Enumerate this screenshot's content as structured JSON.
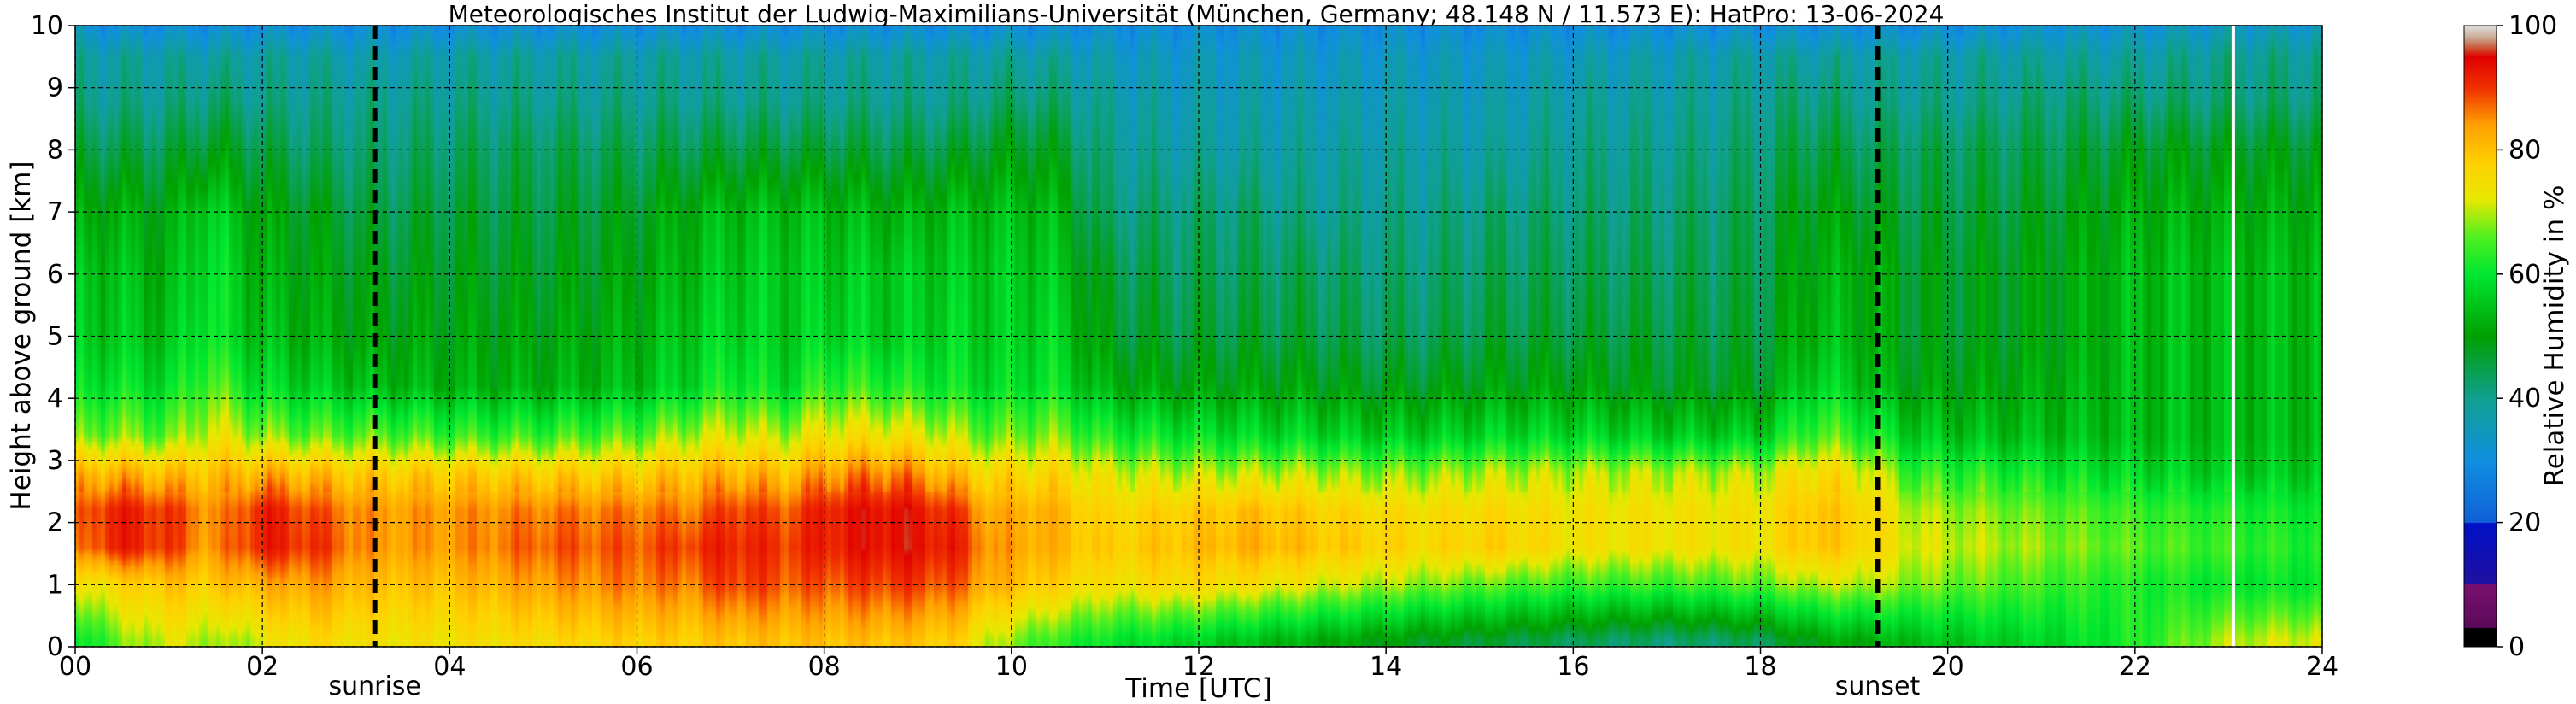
{
  "chart_data": {
    "type": "heatmap",
    "title": "Meteorologisches Institut der Ludwig-Maximilians-Universität (München, Germany; 48.148 N / 11.573 E):    HatPro: 13-06-2024",
    "xlabel": "Time [UTC]",
    "ylabel": "Height above ground [km]",
    "xlim": [
      0,
      24
    ],
    "ylim": [
      0,
      10
    ],
    "x_ticks": [
      "00",
      "02",
      "04",
      "06",
      "08",
      "10",
      "12",
      "14",
      "16",
      "18",
      "20",
      "22",
      "24"
    ],
    "y_ticks": [
      "0",
      "1",
      "2",
      "3",
      "4",
      "5",
      "6",
      "7",
      "8",
      "9",
      "10"
    ],
    "grid": true,
    "colorbar": {
      "label": "Relative Humidity in %",
      "range": [
        0,
        100
      ],
      "ticks": [
        "0",
        "20",
        "40",
        "60",
        "80",
        "100"
      ]
    },
    "annotations": [
      {
        "text": "sunrise",
        "x": 3.2
      },
      {
        "text": "sunset",
        "x": 19.25
      }
    ],
    "missing_data_line_x": 23.05,
    "rh_profiles": [
      {
        "t": 0.0,
        "rh": [
          58,
          72,
          84,
          86,
          80,
          66,
          58,
          55,
          54,
          50,
          45,
          40,
          38,
          32
        ]
      },
      {
        "t": 0.4,
        "rh": [
          66,
          76,
          92,
          92,
          82,
          68,
          60,
          56,
          55,
          52,
          45,
          40,
          38,
          30
        ]
      },
      {
        "t": 1.0,
        "rh": [
          72,
          80,
          90,
          90,
          80,
          66,
          58,
          54,
          52,
          50,
          45,
          40,
          38,
          30
        ]
      },
      {
        "t": 1.4,
        "rh": [
          70,
          78,
          84,
          85,
          80,
          72,
          66,
          62,
          60,
          58,
          48,
          42,
          38,
          30
        ]
      },
      {
        "t": 1.6,
        "rh": [
          68,
          80,
          86,
          85,
          80,
          72,
          64,
          58,
          58,
          55,
          48,
          42,
          38,
          30
        ]
      },
      {
        "t": 2.0,
        "rh": [
          72,
          82,
          92,
          92,
          82,
          68,
          58,
          54,
          52,
          50,
          45,
          40,
          38,
          30
        ]
      },
      {
        "t": 2.6,
        "rh": [
          76,
          84,
          90,
          88,
          80,
          66,
          56,
          52,
          50,
          48,
          43,
          40,
          38,
          30
        ]
      },
      {
        "t": 3.2,
        "rh": [
          74,
          80,
          84,
          84,
          78,
          66,
          54,
          50,
          48,
          45,
          42,
          40,
          36,
          30
        ]
      },
      {
        "t": 4.0,
        "rh": [
          74,
          80,
          84,
          84,
          78,
          64,
          52,
          50,
          48,
          46,
          43,
          40,
          38,
          30
        ]
      },
      {
        "t": 5.0,
        "rh": [
          76,
          84,
          88,
          86,
          78,
          64,
          52,
          50,
          48,
          46,
          44,
          40,
          38,
          30
        ]
      },
      {
        "t": 6.0,
        "rh": [
          78,
          86,
          88,
          86,
          78,
          66,
          54,
          52,
          50,
          48,
          44,
          40,
          38,
          30
        ]
      },
      {
        "t": 6.6,
        "rh": [
          78,
          86,
          90,
          86,
          80,
          70,
          58,
          56,
          54,
          52,
          45,
          40,
          38,
          30
        ]
      },
      {
        "t": 7.0,
        "rh": [
          80,
          90,
          92,
          90,
          82,
          72,
          62,
          58,
          56,
          54,
          46,
          40,
          38,
          30
        ]
      },
      {
        "t": 7.6,
        "rh": [
          80,
          88,
          90,
          88,
          80,
          70,
          58,
          56,
          56,
          54,
          46,
          40,
          38,
          30
        ]
      },
      {
        "t": 8.0,
        "rh": [
          80,
          88,
          92,
          92,
          84,
          74,
          64,
          58,
          56,
          54,
          46,
          40,
          38,
          30
        ]
      },
      {
        "t": 8.8,
        "rh": [
          80,
          90,
          94,
          94,
          86,
          74,
          62,
          56,
          56,
          52,
          45,
          40,
          38,
          30
        ]
      },
      {
        "t": 9.4,
        "rh": [
          78,
          88,
          92,
          90,
          80,
          70,
          60,
          58,
          56,
          54,
          46,
          40,
          38,
          30
        ]
      },
      {
        "t": 9.8,
        "rh": [
          70,
          82,
          84,
          82,
          76,
          66,
          58,
          56,
          56,
          54,
          48,
          42,
          38,
          30
        ]
      },
      {
        "t": 10.4,
        "rh": [
          64,
          78,
          82,
          82,
          76,
          68,
          60,
          58,
          56,
          54,
          48,
          42,
          38,
          30
        ]
      },
      {
        "t": 11.0,
        "rh": [
          60,
          74,
          78,
          76,
          72,
          62,
          52,
          48,
          46,
          42,
          40,
          38,
          35,
          30
        ]
      },
      {
        "t": 11.8,
        "rh": [
          58,
          76,
          80,
          78,
          70,
          60,
          50,
          46,
          44,
          42,
          38,
          36,
          34,
          30
        ]
      },
      {
        "t": 12.6,
        "rh": [
          54,
          74,
          82,
          80,
          70,
          58,
          50,
          46,
          44,
          42,
          38,
          36,
          34,
          30
        ]
      },
      {
        "t": 13.2,
        "rh": [
          52,
          72,
          80,
          78,
          70,
          58,
          50,
          46,
          44,
          40,
          38,
          36,
          34,
          30
        ]
      },
      {
        "t": 13.8,
        "rh": [
          50,
          70,
          78,
          76,
          68,
          56,
          48,
          44,
          42,
          40,
          38,
          36,
          34,
          30
        ]
      },
      {
        "t": 14.4,
        "rh": [
          48,
          68,
          76,
          75,
          68,
          56,
          48,
          44,
          42,
          40,
          38,
          36,
          34,
          30
        ]
      },
      {
        "t": 15.2,
        "rh": [
          46,
          66,
          78,
          76,
          70,
          58,
          50,
          46,
          44,
          42,
          38,
          36,
          34,
          30
        ]
      },
      {
        "t": 16.0,
        "rh": [
          44,
          64,
          74,
          74,
          70,
          58,
          50,
          46,
          44,
          42,
          40,
          38,
          35,
          30
        ]
      },
      {
        "t": 17.0,
        "rh": [
          42,
          64,
          74,
          74,
          70,
          56,
          48,
          46,
          44,
          42,
          40,
          38,
          36,
          30
        ]
      },
      {
        "t": 18.0,
        "rh": [
          44,
          66,
          74,
          74,
          70,
          56,
          48,
          46,
          45,
          44,
          42,
          40,
          38,
          30
        ]
      },
      {
        "t": 18.6,
        "rh": [
          50,
          70,
          80,
          80,
          76,
          66,
          58,
          54,
          52,
          50,
          46,
          42,
          38,
          30
        ]
      },
      {
        "t": 19.2,
        "rh": [
          52,
          70,
          76,
          76,
          72,
          62,
          54,
          52,
          52,
          48,
          44,
          40,
          38,
          30
        ]
      },
      {
        "t": 19.6,
        "rh": [
          54,
          68,
          72,
          70,
          64,
          56,
          50,
          48,
          48,
          46,
          44,
          40,
          38,
          30
        ]
      },
      {
        "t": 20.4,
        "rh": [
          56,
          66,
          70,
          68,
          62,
          54,
          50,
          48,
          48,
          46,
          44,
          40,
          38,
          30
        ]
      },
      {
        "t": 21.2,
        "rh": [
          58,
          64,
          68,
          66,
          60,
          54,
          52,
          50,
          50,
          48,
          45,
          42,
          38,
          32
        ]
      },
      {
        "t": 22.0,
        "rh": [
          62,
          62,
          66,
          64,
          58,
          54,
          54,
          54,
          54,
          52,
          48,
          42,
          38,
          32
        ]
      },
      {
        "t": 23.0,
        "rh": [
          70,
          60,
          64,
          62,
          56,
          54,
          54,
          54,
          54,
          52,
          48,
          42,
          40,
          34
        ]
      },
      {
        "t": 24.0,
        "rh": [
          72,
          60,
          62,
          60,
          56,
          54,
          54,
          54,
          54,
          52,
          48,
          42,
          40,
          34
        ]
      }
    ],
    "rh_profile_heights_km": [
      0.1,
      1.0,
      1.6,
      2.2,
      2.8,
      3.4,
      4.2,
      5.0,
      6.0,
      7.0,
      8.0,
      8.8,
      9.5,
      10.0
    ],
    "colormap": [
      {
        "v": 0,
        "c": "#000000"
      },
      {
        "v": 3,
        "c": "#000000"
      },
      {
        "v": 3,
        "c": "#5a0a5a"
      },
      {
        "v": 10,
        "c": "#7a1070"
      },
      {
        "v": 10,
        "c": "#2010a0"
      },
      {
        "v": 20,
        "c": "#0010c8"
      },
      {
        "v": 20,
        "c": "#1060d8"
      },
      {
        "v": 30,
        "c": "#1090e0"
      },
      {
        "v": 40,
        "c": "#10a090"
      },
      {
        "v": 50,
        "c": "#00a000"
      },
      {
        "v": 60,
        "c": "#00e830"
      },
      {
        "v": 66,
        "c": "#50f020"
      },
      {
        "v": 72,
        "c": "#e8e800"
      },
      {
        "v": 78,
        "c": "#ffd000"
      },
      {
        "v": 84,
        "c": "#ffa000"
      },
      {
        "v": 90,
        "c": "#f03000"
      },
      {
        "v": 95,
        "c": "#e00000"
      },
      {
        "v": 96,
        "c": "#d04020"
      },
      {
        "v": 98,
        "c": "#c8a890"
      },
      {
        "v": 100,
        "c": "#e0e0e0"
      }
    ]
  }
}
